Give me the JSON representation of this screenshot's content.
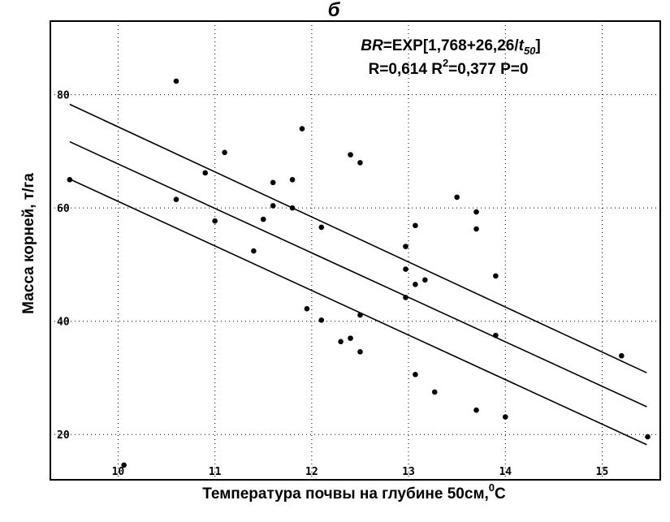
{
  "chart_data": {
    "type": "scatter",
    "panel_label": "б",
    "equation": {
      "lhs": "BR",
      "rhs_prefix": "=EXP[1,768+26,26/",
      "var": "t",
      "var_sub": "50",
      "rhs_suffix": "]"
    },
    "stats": {
      "r_part": "R=0,614 R",
      "r2_sup": "2",
      "rest": "=0,377 P=0"
    },
    "xlabel_main": "Температура почвы на глубине 50см,",
    "xlabel_sup": "0",
    "xlabel_unit": "C",
    "ylabel": "Масса корней, т/га",
    "xlim": [
      9.3,
      15.6
    ],
    "ylim": [
      12,
      93
    ],
    "x_ticks": [
      10,
      11,
      12,
      13,
      14,
      15
    ],
    "y_ticks": [
      20,
      40,
      60,
      80
    ],
    "grid": "dotted",
    "points": [
      {
        "x": 9.5,
        "y": 65
      },
      {
        "x": 10.06,
        "y": 14.6
      },
      {
        "x": 10.6,
        "y": 82.4
      },
      {
        "x": 10.6,
        "y": 61.5
      },
      {
        "x": 10.9,
        "y": 66.2
      },
      {
        "x": 11.0,
        "y": 57.7
      },
      {
        "x": 11.1,
        "y": 69.8
      },
      {
        "x": 11.4,
        "y": 52.4
      },
      {
        "x": 11.5,
        "y": 58
      },
      {
        "x": 11.6,
        "y": 64.5
      },
      {
        "x": 11.6,
        "y": 60.4
      },
      {
        "x": 11.8,
        "y": 65
      },
      {
        "x": 11.8,
        "y": 60
      },
      {
        "x": 11.9,
        "y": 74
      },
      {
        "x": 11.95,
        "y": 42.2
      },
      {
        "x": 12.1,
        "y": 56.6
      },
      {
        "x": 12.1,
        "y": 40.2
      },
      {
        "x": 12.3,
        "y": 36.4
      },
      {
        "x": 12.4,
        "y": 69.4
      },
      {
        "x": 12.4,
        "y": 37
      },
      {
        "x": 12.5,
        "y": 68
      },
      {
        "x": 12.5,
        "y": 41.1
      },
      {
        "x": 12.5,
        "y": 34.6
      },
      {
        "x": 12.97,
        "y": 53.2
      },
      {
        "x": 12.97,
        "y": 49.2
      },
      {
        "x": 12.97,
        "y": 44.2
      },
      {
        "x": 13.07,
        "y": 56.9
      },
      {
        "x": 13.07,
        "y": 46.5
      },
      {
        "x": 13.07,
        "y": 30.6
      },
      {
        "x": 13.17,
        "y": 47.3
      },
      {
        "x": 13.27,
        "y": 27.5
      },
      {
        "x": 13.5,
        "y": 61.9
      },
      {
        "x": 13.7,
        "y": 59.3
      },
      {
        "x": 13.7,
        "y": 56.3
      },
      {
        "x": 13.7,
        "y": 24.3
      },
      {
        "x": 13.9,
        "y": 48
      },
      {
        "x": 13.9,
        "y": 37.5
      },
      {
        "x": 14.0,
        "y": 23.1
      },
      {
        "x": 15.2,
        "y": 33.9
      },
      {
        "x": 15.47,
        "y": 19.6
      }
    ],
    "fit_line": [
      [
        9.5,
        71.7
      ],
      [
        15.46,
        24.9
      ]
    ],
    "upper_band": [
      [
        9.5,
        78.3
      ],
      [
        15.46,
        30.9
      ]
    ],
    "lower_band": [
      [
        9.5,
        65.1
      ],
      [
        15.46,
        18.2
      ]
    ]
  }
}
